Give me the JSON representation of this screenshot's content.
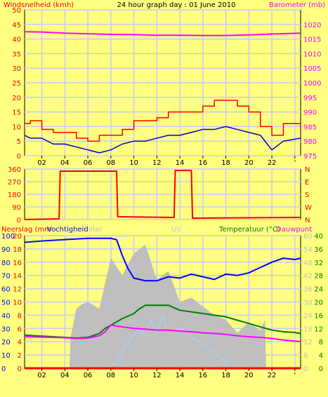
{
  "title": "24 hour graph day : 01 June 2010",
  "colors": {
    "background": "#ffff80",
    "plot_bg": "#ffff80",
    "grid": "#c8c8ff",
    "wind": "#ff0000",
    "wind_avg": "#0000cc",
    "barometer": "#ff00ff",
    "direction": "#ff0000",
    "rain": "#ff0000",
    "humidity": "#0000ff",
    "solar": "#bfbfbf",
    "uv": "#a6d2ff",
    "temperature": "#008000",
    "dewpoint": "#ff00ff"
  },
  "x_ticks": [
    "02",
    "04",
    "06",
    "08",
    "10",
    "12",
    "14",
    "16",
    "18",
    "20",
    "22",
    "'"
  ],
  "panels": {
    "wind_baro": {
      "left_label": "Windsnelheid (kmh)",
      "right_label": "Barometer (mb)",
      "left_ticks": [
        "0",
        "5",
        "10",
        "15",
        "20",
        "25",
        "30",
        "35",
        "40",
        "45",
        "50"
      ],
      "right_ticks": [
        "975",
        "980",
        "985",
        "990",
        "995",
        "1000",
        "1005",
        "1010",
        "1015",
        "1020"
      ]
    },
    "direction": {
      "left_ticks": [
        "0",
        "90",
        "180",
        "270",
        "360"
      ],
      "right_ticks": [
        "N",
        "E",
        "S",
        "W",
        "N"
      ]
    },
    "rain_temp": {
      "label_rain": "Neerslag (mm",
      "label_humidity": "Vochtigheid",
      "label_solar": "olar",
      "label_uv": "UV",
      "label_temp": "Temperatuur (°C)",
      "label_dew": "Dauwpunt",
      "left_ticks_hum": [
        "0",
        "10",
        "20",
        "30",
        "40",
        "50",
        "60",
        "70",
        "80",
        "90",
        "100"
      ],
      "left_ticks_rain": [
        "0",
        "2",
        "4",
        "6",
        "8",
        "10",
        "12",
        "14",
        "16",
        "18",
        "20"
      ],
      "right_ticks_solar": [
        "0",
        "6",
        "12",
        "18",
        "24",
        "30",
        "36",
        "42",
        "48",
        "54",
        "60"
      ],
      "right_ticks_temp": [
        "0",
        "4",
        "8",
        "12",
        "16",
        "20",
        "24",
        "28",
        "32",
        "36",
        "40"
      ]
    }
  },
  "chart_data": [
    {
      "type": "line",
      "title": "24 hour graph day : 01 June 2010",
      "xlabel": "",
      "x_unit": "hour",
      "xlim": [
        0.5,
        24.5
      ],
      "ylim_left": [
        0,
        50
      ],
      "ylim_right": [
        975,
        1025
      ],
      "series": [
        {
          "name": "Windsnelheid (kmh)",
          "axis": "left",
          "x": [
            0.5,
            1,
            2,
            3,
            4,
            5,
            6,
            7,
            8,
            9,
            10,
            11,
            12,
            13,
            14,
            15,
            16,
            17,
            18,
            19,
            20,
            21,
            22,
            23,
            24.5
          ],
          "values": [
            11,
            12,
            9,
            8,
            8,
            6,
            5,
            7,
            7,
            9,
            12,
            12,
            13,
            15,
            15,
            15,
            17,
            19,
            19,
            17,
            15,
            10,
            7,
            11,
            9
          ]
        },
        {
          "name": "",
          "axis": "left",
          "x": [
            0.5,
            1,
            2,
            3,
            4,
            5,
            6,
            7,
            8,
            9,
            10,
            11,
            12,
            13,
            14,
            15,
            16,
            17,
            18,
            19,
            20,
            21,
            22,
            23,
            24.5
          ],
          "values": [
            7,
            6,
            6,
            4,
            4,
            3,
            2,
            1,
            2,
            4,
            5,
            5,
            6,
            7,
            7,
            8,
            9,
            9,
            10,
            9,
            8,
            7,
            2,
            5,
            6
          ]
        },
        {
          "name": "Barometer (mb)",
          "axis": "right",
          "x": [
            0.5,
            2,
            4,
            6,
            8,
            10,
            12,
            14,
            16,
            18,
            20,
            22,
            24.5
          ],
          "values": [
            1017.5,
            1017.4,
            1017,
            1016.8,
            1016.6,
            1016.5,
            1016.3,
            1016.3,
            1016.2,
            1016.2,
            1016.4,
            1016.7,
            1017
          ]
        }
      ]
    },
    {
      "type": "line",
      "xlim": [
        0.5,
        24.5
      ],
      "ylim": [
        0,
        360
      ],
      "series": [
        {
          "name": "",
          "x": [
            0.5,
            3.5,
            3.6,
            8.5,
            8.6,
            13.5,
            13.6,
            15.0,
            15.1,
            24.5
          ],
          "values": [
            0,
            5,
            345,
            345,
            20,
            15,
            350,
            350,
            10,
            15
          ]
        }
      ]
    },
    {
      "type": "line",
      "xlim": [
        0.5,
        24.5
      ],
      "series": [
        {
          "name": "Neerslag (mm",
          "axis": "rain",
          "ylim": [
            0,
            20
          ],
          "x": [
            0.5,
            24.5
          ],
          "values": [
            0,
            0
          ]
        },
        {
          "name": "Vochtigheid",
          "axis": "humidity",
          "ylim": [
            0,
            100
          ],
          "x": [
            0.5,
            2,
            4,
            6,
            7,
            8,
            8.5,
            9,
            9.5,
            10,
            11,
            12,
            13,
            14,
            15,
            16,
            17,
            18,
            19,
            20,
            21,
            22,
            23,
            24,
            24.5
          ],
          "values": [
            95,
            96,
            97,
            98,
            98,
            98,
            97,
            85,
            75,
            68,
            66,
            66,
            69,
            68,
            71,
            69,
            67,
            71,
            70,
            72,
            76,
            80,
            83,
            82,
            83
          ]
        },
        {
          "name": "olar",
          "axis": "solar",
          "ylim": [
            0,
            60
          ],
          "x": [
            0.5,
            4.4,
            4.5,
            5,
            5.5,
            6,
            7,
            8,
            9,
            10,
            11,
            12,
            13,
            14,
            15,
            16,
            17,
            18,
            19,
            20,
            21,
            21.4,
            21.5,
            24.5
          ],
          "values": [
            0,
            0,
            14,
            27,
            29,
            30,
            27,
            50,
            42,
            52,
            56,
            40,
            44,
            30,
            32,
            28,
            24,
            22,
            16,
            21,
            17,
            22,
            0,
            0
          ]
        },
        {
          "name": "UV",
          "axis": "solar",
          "ylim": [
            0,
            60
          ],
          "x": [
            0.5,
            7.8,
            8.5,
            9.5,
            10.5,
            11,
            11.5,
            12,
            12.5,
            13,
            14,
            15,
            16,
            17,
            18,
            18.3,
            24.5
          ],
          "values": [
            0,
            0,
            3,
            12,
            18,
            14,
            22,
            16,
            24,
            17,
            18,
            14,
            11,
            7,
            3,
            0,
            0
          ]
        },
        {
          "name": "Temperatuur (°C)",
          "axis": "temp",
          "ylim": [
            0,
            40
          ],
          "x": [
            0.5,
            2,
            4,
            5,
            6,
            7,
            7.5,
            8,
            9,
            10,
            10.5,
            11,
            12,
            13,
            14,
            15,
            16,
            17,
            18,
            19,
            20,
            21,
            22,
            23,
            24,
            24.5
          ],
          "values": [
            10,
            9.7,
            9.3,
            9.1,
            9.3,
            10.5,
            12,
            13,
            15,
            16.5,
            18,
            19,
            19,
            19,
            17.5,
            17,
            16.5,
            16,
            15.5,
            14.5,
            13.5,
            12.5,
            11.5,
            11,
            10.8,
            10.5
          ]
        },
        {
          "name": "Dauwpunt",
          "axis": "temp",
          "ylim": [
            0,
            40
          ],
          "x": [
            0.5,
            2,
            4,
            5,
            6,
            7,
            7.5,
            8,
            9,
            10,
            11,
            12,
            13,
            14,
            15,
            16,
            17,
            18,
            19,
            20,
            21,
            22,
            23,
            24,
            24.5
          ],
          "values": [
            9.5,
            9.4,
            9.2,
            9.0,
            9.1,
            9.8,
            11,
            13,
            12.5,
            12,
            11.8,
            11.5,
            11.5,
            11.2,
            11,
            10.7,
            10.5,
            10.2,
            9.8,
            9.5,
            9.3,
            9,
            8.5,
            8.2,
            8
          ]
        }
      ]
    }
  ]
}
